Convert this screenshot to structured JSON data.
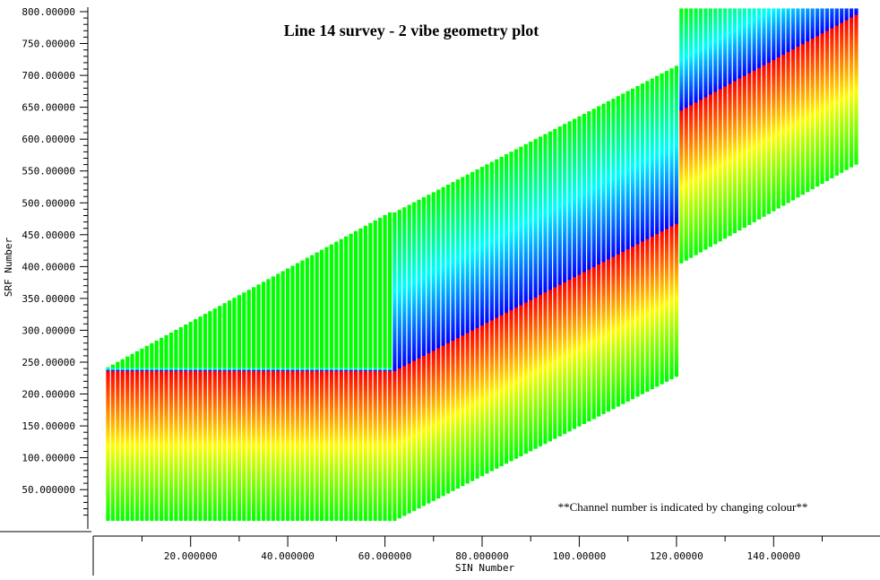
{
  "chart_data": {
    "type": "scatter",
    "title": "Line 14 survey - 2 vibe geometry plot",
    "annotation": "**Channel number is indicated by changing colour**",
    "xlabel": "SIN Number",
    "ylabel": "SRF Number",
    "xlim": [
      0,
      160
    ],
    "ylim": [
      0,
      800
    ],
    "x_tick_labels": [
      "20.000000",
      "40.000000",
      "60.000000",
      "80.000000",
      "100.00000",
      "120.00000",
      "140.00000"
    ],
    "x_tick_values": [
      20,
      40,
      60,
      80,
      100,
      120,
      140
    ],
    "y_tick_labels": [
      "50.000000",
      "100.00000",
      "150.00000",
      "200.00000",
      "250.00000",
      "300.00000",
      "350.00000",
      "400.00000",
      "450.00000",
      "500.00000",
      "550.00000",
      "600.00000",
      "650.00000",
      "700.00000",
      "750.00000",
      "800.00000"
    ],
    "y_tick_values": [
      50,
      100,
      150,
      200,
      250,
      300,
      350,
      400,
      450,
      500,
      550,
      600,
      650,
      700,
      750,
      800
    ],
    "grid": false,
    "legend": "none",
    "series": [
      {
        "x": [
          3,
          61
        ],
        "receiver_min": [
          1,
          1
        ],
        "receiver_mid": [
          236,
          236
        ],
        "receiver_max": [
          242,
          485
        ]
      },
      {
        "x": [
          62,
          120
        ],
        "receiver_min": [
          1,
          227
        ],
        "receiver_mid": [
          236,
          467
        ],
        "receiver_max": [
          485,
          715
        ]
      },
      {
        "x": [
          121,
          157
        ],
        "receiver_min": [
          405,
          560
        ],
        "receiver_mid": [
          645,
          795
        ],
        "receiver_max": [
          805,
          805
        ]
      }
    ],
    "colormap": [
      "#00ff00",
      "#ffff00",
      "#ff0000",
      "#0000ff",
      "#00ffff",
      "#00ff00"
    ],
    "colors": {
      "frame": "#000000",
      "background": "#ffffff"
    }
  }
}
